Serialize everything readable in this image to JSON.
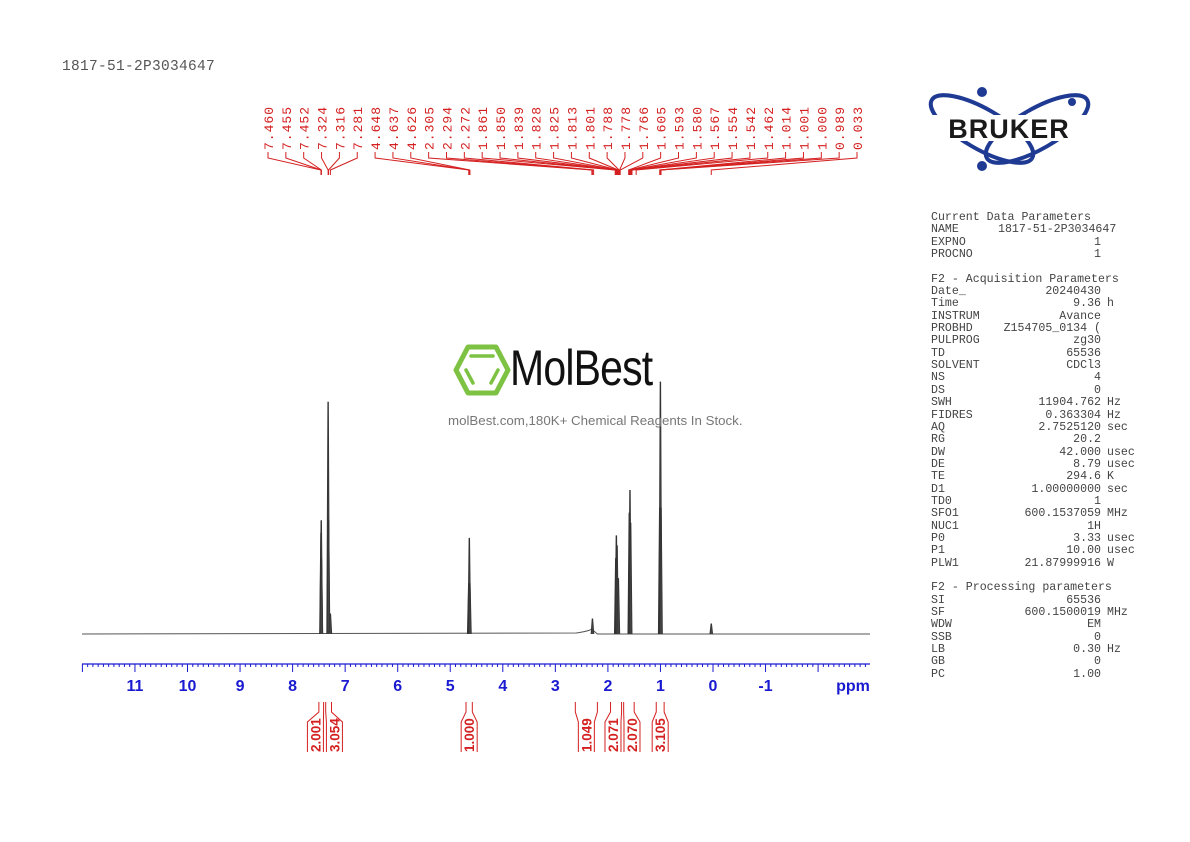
{
  "sample_id": "1817-51-2P3034647",
  "watermark": {
    "brand": "MolBest",
    "tagline": "molBest.com,180K+ Chemical Reagents In Stock.",
    "color": "#7dc242"
  },
  "logo": {
    "text": "BRUKER",
    "color": "#1f3a93"
  },
  "parameters": {
    "current": {
      "title": "Current Data Parameters",
      "rows": [
        {
          "k": "NAME",
          "v": "1817-51-2P3034647",
          "u": ""
        },
        {
          "k": "EXPNO",
          "v": "1",
          "u": ""
        },
        {
          "k": "PROCNO",
          "v": "1",
          "u": ""
        }
      ]
    },
    "acquisition": {
      "title": "F2 - Acquisition Parameters",
      "rows": [
        {
          "k": "Date_",
          "v": "20240430",
          "u": ""
        },
        {
          "k": "Time",
          "v": "9.36",
          "u": "h"
        },
        {
          "k": "INSTRUM",
          "v": "Avance",
          "u": ""
        },
        {
          "k": "PROBHD",
          "v": "Z154705_0134 (",
          "u": ""
        },
        {
          "k": "PULPROG",
          "v": "zg30",
          "u": ""
        },
        {
          "k": "TD",
          "v": "65536",
          "u": ""
        },
        {
          "k": "SOLVENT",
          "v": "CDCl3",
          "u": ""
        },
        {
          "k": "NS",
          "v": "4",
          "u": ""
        },
        {
          "k": "DS",
          "v": "0",
          "u": ""
        },
        {
          "k": "SWH",
          "v": "11904.762",
          "u": "Hz"
        },
        {
          "k": "FIDRES",
          "v": "0.363304",
          "u": "Hz"
        },
        {
          "k": "AQ",
          "v": "2.7525120",
          "u": "sec"
        },
        {
          "k": "RG",
          "v": "20.2",
          "u": ""
        },
        {
          "k": "DW",
          "v": "42.000",
          "u": "usec"
        },
        {
          "k": "DE",
          "v": "8.79",
          "u": "usec"
        },
        {
          "k": "TE",
          "v": "294.6",
          "u": "K"
        },
        {
          "k": "D1",
          "v": "1.00000000",
          "u": "sec"
        },
        {
          "k": "TD0",
          "v": "1",
          "u": ""
        },
        {
          "k": "SFO1",
          "v": "600.1537059",
          "u": "MHz"
        },
        {
          "k": "NUC1",
          "v": "1H",
          "u": ""
        },
        {
          "k": "P0",
          "v": "3.33",
          "u": "usec"
        },
        {
          "k": "P1",
          "v": "10.00",
          "u": "usec"
        },
        {
          "k": "PLW1",
          "v": "21.87999916",
          "u": "W"
        }
      ]
    },
    "processing": {
      "title": "F2 - Processing parameters",
      "rows": [
        {
          "k": "SI",
          "v": "65536",
          "u": ""
        },
        {
          "k": "SF",
          "v": "600.1500019",
          "u": "MHz"
        },
        {
          "k": "WDW",
          "v": "EM",
          "u": ""
        },
        {
          "k": "SSB",
          "v": "0",
          "u": ""
        },
        {
          "k": "LB",
          "v": "0.30",
          "u": "Hz"
        },
        {
          "k": "GB",
          "v": "0",
          "u": ""
        },
        {
          "k": "PC",
          "v": "1.00",
          "u": ""
        }
      ]
    }
  },
  "chart_data": {
    "type": "line",
    "xlabel": "ppm",
    "xlim": [
      12.0,
      -3.0
    ],
    "x_reversed": true,
    "x_ticks": [
      "11",
      "10",
      "9",
      "8",
      "7",
      "6",
      "5",
      "4",
      "3",
      "2",
      "1",
      "0",
      "-1"
    ],
    "grid": false,
    "peak_labels": [
      "7.460",
      "7.455",
      "7.452",
      "7.324",
      "7.316",
      "7.281",
      "4.648",
      "4.637",
      "4.626",
      "2.305",
      "2.294",
      "2.272",
      "1.861",
      "1.850",
      "1.839",
      "1.828",
      "1.825",
      "1.813",
      "1.801",
      "1.788",
      "1.778",
      "1.766",
      "1.605",
      "1.593",
      "1.580",
      "1.567",
      "1.554",
      "1.542",
      "1.462",
      "1.014",
      "1.001",
      "1.000",
      "0.989",
      "0.033"
    ],
    "peaks": [
      {
        "ppm": 7.46,
        "intensity": 40
      },
      {
        "ppm": 7.455,
        "intensity": 45
      },
      {
        "ppm": 7.452,
        "intensity": 30
      },
      {
        "ppm": 7.324,
        "intensity": 92
      },
      {
        "ppm": 7.316,
        "intensity": 45
      },
      {
        "ppm": 7.281,
        "intensity": 8
      },
      {
        "ppm": 4.648,
        "intensity": 20
      },
      {
        "ppm": 4.637,
        "intensity": 38
      },
      {
        "ppm": 4.626,
        "intensity": 20
      },
      {
        "ppm": 2.294,
        "intensity": 6
      },
      {
        "ppm": 1.85,
        "intensity": 30
      },
      {
        "ppm": 1.839,
        "intensity": 39
      },
      {
        "ppm": 1.825,
        "intensity": 35
      },
      {
        "ppm": 1.801,
        "intensity": 22
      },
      {
        "ppm": 1.593,
        "intensity": 48
      },
      {
        "ppm": 1.58,
        "intensity": 57
      },
      {
        "ppm": 1.567,
        "intensity": 44
      },
      {
        "ppm": 1.014,
        "intensity": 50
      },
      {
        "ppm": 1.001,
        "intensity": 100
      },
      {
        "ppm": 0.989,
        "intensity": 50
      },
      {
        "ppm": 0.033,
        "intensity": 4
      }
    ],
    "integrals": [
      {
        "value": "2.001",
        "from": 7.5,
        "to": 7.41
      },
      {
        "value": "3.054",
        "from": 7.37,
        "to": 7.26
      },
      {
        "value": "1.000",
        "from": 4.7,
        "to": 4.58
      },
      {
        "value": "1.049",
        "from": 2.62,
        "to": 2.2
      },
      {
        "value": "2.071",
        "from": 1.95,
        "to": 1.74
      },
      {
        "value": "2.070",
        "from": 1.7,
        "to": 1.5
      },
      {
        "value": "3.105",
        "from": 1.08,
        "to": 0.93
      }
    ],
    "colors": {
      "spectrum": "#333333",
      "peak_labels": "#d42020",
      "axis": "#1a1ad0"
    }
  }
}
